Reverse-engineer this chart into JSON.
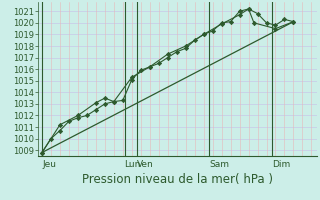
{
  "background_color": "#cceee8",
  "grid_color_h": "#c8c8e8",
  "grid_color_v": "#e8b8b8",
  "line_color": "#2d5a2d",
  "marker_color": "#2d5a2d",
  "ylim": [
    1008.5,
    1021.8
  ],
  "yticks": [
    1009,
    1010,
    1011,
    1012,
    1013,
    1014,
    1015,
    1016,
    1017,
    1018,
    1019,
    1020,
    1021
  ],
  "xlabel": "Pression niveau de la mer( hPa )",
  "xlabel_fontsize": 8.5,
  "xlim": [
    0,
    15.5
  ],
  "day_positions": [
    0.2,
    4.8,
    5.5,
    9.5,
    13.0
  ],
  "day_labels": [
    "Jeu",
    "Lun",
    "Ven",
    "Sam",
    "Dim"
  ],
  "vline_positions": [
    0.2,
    4.8,
    5.5,
    9.5,
    13.0
  ],
  "series1_x": [
    0.2,
    0.7,
    1.2,
    1.7,
    2.2,
    2.7,
    3.2,
    3.7,
    4.2,
    4.7,
    5.2,
    5.7,
    6.2,
    6.7,
    7.2,
    7.7,
    8.2,
    8.7,
    9.2,
    9.7,
    10.2,
    10.7,
    11.2,
    11.7,
    12.2,
    12.7,
    13.2,
    13.7,
    14.2
  ],
  "series1_y": [
    1008.8,
    1010.0,
    1010.7,
    1011.5,
    1011.8,
    1012.0,
    1012.5,
    1013.0,
    1013.2,
    1013.3,
    1015.1,
    1015.9,
    1016.2,
    1016.5,
    1017.0,
    1017.5,
    1017.8,
    1018.5,
    1019.0,
    1019.3,
    1020.0,
    1020.1,
    1021.0,
    1021.2,
    1020.8,
    1020.0,
    1019.8,
    1020.3,
    1020.1
  ],
  "series2_x": [
    0.2,
    1.2,
    2.2,
    3.2,
    3.7,
    4.2,
    5.2,
    6.2,
    7.2,
    8.2,
    9.2,
    10.2,
    11.2,
    11.7,
    12.0,
    13.2,
    14.2
  ],
  "series2_y": [
    1008.8,
    1011.2,
    1012.0,
    1013.1,
    1013.5,
    1013.2,
    1015.3,
    1016.2,
    1017.3,
    1018.0,
    1019.0,
    1019.9,
    1020.7,
    1021.2,
    1020.0,
    1019.5,
    1020.1
  ],
  "trend_x": [
    0.2,
    14.2
  ],
  "trend_y": [
    1008.8,
    1020.1
  ],
  "minor_xtick_positions": [
    0.2,
    0.7,
    1.2,
    1.7,
    2.2,
    2.7,
    3.2,
    3.7,
    4.2,
    4.7,
    5.2,
    5.7,
    6.2,
    6.7,
    7.2,
    7.7,
    8.2,
    8.7,
    9.2,
    9.7,
    10.2,
    10.7,
    11.2,
    11.7,
    12.2,
    12.7,
    13.2,
    13.7,
    14.2,
    14.7,
    15.2
  ]
}
